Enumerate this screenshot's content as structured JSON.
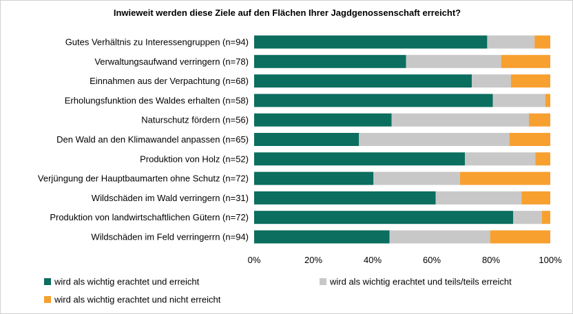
{
  "chart_data": {
    "type": "bar",
    "orientation": "horizontal",
    "stacked": true,
    "title": "Inwieweit werden diese Ziele auf den Flächen Ihrer Jagdgenossenschaft erreicht?",
    "categories": [
      "Gutes Verhältnis zu Interessengruppen (n=94)",
      "Verwaltungsaufwand verringern (n=78)",
      "Einnahmen aus  der Verpachtung (n=68)",
      "Erholungsfunktion des Waldes erhalten (n=58)",
      "Naturschutz fördern (n=56)",
      "Den Wald an den Klimawandel anpassen (n=65)",
      "Produktion von Holz (n=52)",
      "Verjüngung der Hauptbaumarten ohne Schutz (n=72)",
      "Wildschäden im Wald verringern (n=31)",
      "Produktion von landwirtschaftlichen Gütern (n=72)",
      "Wildschäden im Feld verringerrn (n=94)"
    ],
    "series": [
      {
        "name": "wird als wichtig erachtet und erreicht",
        "color": "#0b6e5f",
        "values": [
          78.7,
          51.3,
          73.5,
          80.6,
          46.4,
          35.4,
          71.2,
          40.3,
          61.3,
          87.5,
          45.7
        ]
      },
      {
        "name": "wird als wichtig erachtet und teils/teils erreicht",
        "color": "#c8c8c8",
        "values": [
          16.0,
          32.1,
          13.2,
          17.7,
          46.4,
          50.8,
          23.8,
          29.2,
          29.0,
          9.7,
          34.0
        ]
      },
      {
        "name": "wird als wichtig erachtet und nicht erreicht",
        "color": "#f7a030",
        "values": [
          5.3,
          16.6,
          13.3,
          1.7,
          7.2,
          13.8,
          5.0,
          30.5,
          9.7,
          2.8,
          20.3
        ]
      }
    ],
    "xlim": [
      0,
      100
    ],
    "xticks": [
      "0%",
      "20%",
      "40%",
      "60%",
      "80%",
      "100%"
    ],
    "grid": false,
    "legend_position": "bottom"
  }
}
